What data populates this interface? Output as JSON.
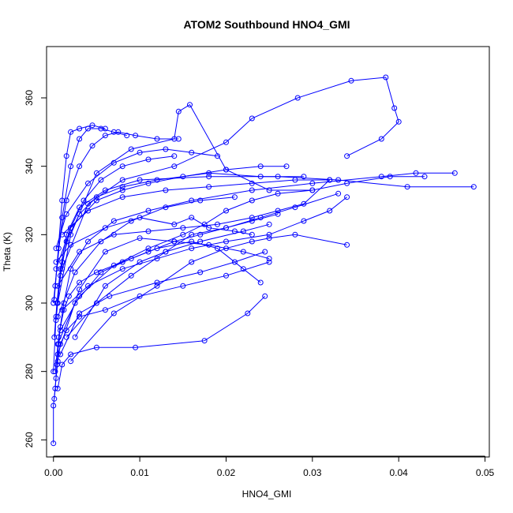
{
  "chart_data": {
    "type": "line",
    "title": "ATOM2 Southbound HNO4_GMI",
    "xlabel": "HNO4_GMI",
    "ylabel": "Theta (K)",
    "xlim": [
      -0.0008,
      0.0505
    ],
    "ylim": [
      255,
      375
    ],
    "x_ticks": [
      0.0,
      0.01,
      0.02,
      0.03,
      0.04,
      0.05
    ],
    "x_tick_labels": [
      "0.00",
      "0.01",
      "0.02",
      "0.03",
      "0.04",
      "0.05"
    ],
    "y_ticks": [
      260,
      280,
      300,
      320,
      340,
      360
    ],
    "y_tick_labels": [
      "260",
      "280",
      "300",
      "320",
      "340",
      "360"
    ],
    "grid": false,
    "colors": {
      "series": "#0000ff",
      "axis": "#000000"
    },
    "series": [
      {
        "points": [
          [
            0.0,
            259
          ],
          [
            0.0,
            270
          ],
          [
            0.0002,
            275
          ],
          [
            0.0004,
            282
          ],
          [
            0.0006,
            288
          ],
          [
            0.0008,
            293
          ],
          [
            0.0012,
            298
          ],
          [
            0.0018,
            302
          ],
          [
            0.003,
            306
          ],
          [
            0.005,
            309
          ],
          [
            0.008,
            312
          ],
          [
            0.011,
            315
          ],
          [
            0.014,
            318
          ],
          [
            0.017,
            320
          ],
          [
            0.02,
            322
          ],
          [
            0.023,
            324
          ],
          [
            0.026,
            326
          ]
        ]
      },
      {
        "points": [
          [
            0.0001,
            272
          ],
          [
            0.0003,
            278
          ],
          [
            0.0005,
            283
          ],
          [
            0.0008,
            288
          ],
          [
            0.0015,
            292
          ],
          [
            0.003,
            296
          ],
          [
            0.006,
            298
          ],
          [
            0.01,
            302
          ],
          [
            0.015,
            305
          ],
          [
            0.02,
            308
          ],
          [
            0.025,
            312
          ]
        ]
      },
      {
        "points": [
          [
            0.0005,
            275
          ],
          [
            0.001,
            282
          ],
          [
            0.002,
            285
          ],
          [
            0.005,
            287
          ],
          [
            0.0095,
            287
          ],
          [
            0.0175,
            289
          ],
          [
            0.0225,
            297
          ],
          [
            0.0245,
            302
          ]
        ]
      },
      {
        "points": [
          [
            0.0002,
            280
          ],
          [
            0.0006,
            290
          ],
          [
            0.0012,
            300
          ],
          [
            0.002,
            310
          ],
          [
            0.004,
            318
          ],
          [
            0.007,
            324
          ],
          [
            0.011,
            327
          ],
          [
            0.016,
            330
          ],
          [
            0.023,
            333
          ],
          [
            0.03,
            335
          ],
          [
            0.038,
            337
          ],
          [
            0.042,
            338
          ],
          [
            0.0465,
            338
          ]
        ]
      },
      {
        "points": [
          [
            0.0001,
            290
          ],
          [
            0.0004,
            300
          ],
          [
            0.0008,
            310
          ],
          [
            0.0015,
            320
          ],
          [
            0.003,
            328
          ],
          [
            0.006,
            333
          ],
          [
            0.01,
            336
          ],
          [
            0.018,
            337
          ],
          [
            0.026,
            337
          ],
          [
            0.033,
            336
          ],
          [
            0.041,
            334
          ],
          [
            0.0487,
            334
          ]
        ]
      },
      {
        "points": [
          [
            0.0003,
            295
          ],
          [
            0.0008,
            308
          ],
          [
            0.0015,
            318
          ],
          [
            0.003,
            326
          ],
          [
            0.005,
            331
          ],
          [
            0.008,
            334
          ],
          [
            0.012,
            336
          ],
          [
            0.018,
            338
          ],
          [
            0.024,
            337
          ],
          [
            0.029,
            337
          ]
        ]
      },
      {
        "points": [
          [
            0.0,
            300
          ],
          [
            0.0006,
            316
          ],
          [
            0.0015,
            330
          ],
          [
            0.003,
            340
          ],
          [
            0.0045,
            346
          ],
          [
            0.006,
            349
          ],
          [
            0.0075,
            350
          ],
          [
            0.0095,
            349
          ],
          [
            0.012,
            348
          ],
          [
            0.0145,
            348
          ]
        ]
      },
      {
        "points": [
          [
            0.0002,
            305
          ],
          [
            0.001,
            325
          ],
          [
            0.002,
            340
          ],
          [
            0.003,
            348
          ],
          [
            0.004,
            351
          ],
          [
            0.0055,
            351
          ],
          [
            0.007,
            350
          ],
          [
            0.0085,
            349
          ]
        ]
      },
      {
        "points": [
          [
            0.0001,
            301
          ],
          [
            0.001,
            330
          ],
          [
            0.0015,
            343
          ],
          [
            0.002,
            350
          ],
          [
            0.003,
            351
          ],
          [
            0.0045,
            352
          ],
          [
            0.006,
            351
          ]
        ]
      },
      {
        "points": [
          [
            0.0005,
            300
          ],
          [
            0.002,
            320
          ],
          [
            0.005,
            338
          ],
          [
            0.009,
            345
          ],
          [
            0.014,
            348
          ],
          [
            0.0145,
            356
          ],
          [
            0.0158,
            358
          ],
          [
            0.02,
            339
          ],
          [
            0.025,
            333
          ],
          [
            0.03,
            333
          ]
        ]
      },
      {
        "points": [
          [
            0.001,
            310
          ],
          [
            0.004,
            329
          ],
          [
            0.008,
            336
          ],
          [
            0.014,
            340
          ],
          [
            0.02,
            347
          ],
          [
            0.023,
            354
          ],
          [
            0.0283,
            360
          ],
          [
            0.0345,
            365
          ],
          [
            0.0385,
            366
          ],
          [
            0.0395,
            357
          ],
          [
            0.04,
            353
          ],
          [
            0.038,
            348
          ],
          [
            0.034,
            343
          ]
        ]
      },
      {
        "points": [
          [
            0.0005,
            305
          ],
          [
            0.003,
            315
          ],
          [
            0.007,
            320
          ],
          [
            0.011,
            321
          ],
          [
            0.015,
            322
          ],
          [
            0.019,
            323
          ],
          [
            0.023,
            325
          ],
          [
            0.026,
            327
          ],
          [
            0.029,
            329
          ],
          [
            0.032,
            336
          ]
        ]
      },
      {
        "points": [
          [
            0.001,
            298
          ],
          [
            0.004,
            305
          ],
          [
            0.008,
            310
          ],
          [
            0.012,
            313
          ],
          [
            0.016,
            316
          ],
          [
            0.02,
            318
          ],
          [
            0.025,
            320
          ],
          [
            0.029,
            324
          ],
          [
            0.032,
            327
          ],
          [
            0.034,
            331
          ]
        ]
      },
      {
        "points": [
          [
            0.0015,
            290
          ],
          [
            0.005,
            300
          ],
          [
            0.009,
            308
          ],
          [
            0.013,
            315
          ],
          [
            0.016,
            320
          ],
          [
            0.02,
            322
          ],
          [
            0.024,
            325
          ],
          [
            0.028,
            328
          ],
          [
            0.033,
            332
          ]
        ]
      },
      {
        "points": [
          [
            0.002,
            283
          ],
          [
            0.007,
            297
          ],
          [
            0.012,
            305
          ],
          [
            0.016,
            312
          ],
          [
            0.02,
            316
          ],
          [
            0.023,
            318
          ],
          [
            0.025,
            319
          ],
          [
            0.028,
            320
          ],
          [
            0.034,
            317
          ]
        ]
      },
      {
        "points": [
          [
            0.0005,
            285
          ],
          [
            0.003,
            304
          ],
          [
            0.006,
            315
          ],
          [
            0.01,
            319
          ],
          [
            0.014,
            318
          ],
          [
            0.018,
            317
          ],
          [
            0.022,
            315
          ],
          [
            0.025,
            313
          ]
        ]
      },
      {
        "points": [
          [
            0.0005,
            288
          ],
          [
            0.0025,
            300
          ],
          [
            0.0055,
            309
          ],
          [
            0.009,
            313
          ],
          [
            0.012,
            316
          ],
          [
            0.016,
            318
          ],
          [
            0.019,
            316
          ],
          [
            0.022,
            310
          ],
          [
            0.024,
            306
          ]
        ]
      },
      {
        "points": [
          [
            0.0008,
            292
          ],
          [
            0.003,
            302
          ],
          [
            0.007,
            311
          ],
          [
            0.011,
            316
          ],
          [
            0.015,
            320
          ],
          [
            0.0175,
            323
          ],
          [
            0.02,
            327
          ],
          [
            0.023,
            330
          ],
          [
            0.026,
            332
          ],
          [
            0.03,
            333
          ],
          [
            0.034,
            335
          ],
          [
            0.039,
            337
          ],
          [
            0.043,
            337
          ]
        ]
      },
      {
        "points": [
          [
            0.0003,
            310
          ],
          [
            0.002,
            322
          ],
          [
            0.005,
            330
          ],
          [
            0.008,
            333
          ],
          [
            0.011,
            335
          ],
          [
            0.015,
            337
          ],
          [
            0.02,
            339
          ],
          [
            0.024,
            340
          ],
          [
            0.027,
            340
          ]
        ]
      },
      {
        "points": [
          [
            0.001,
            320
          ],
          [
            0.004,
            327
          ],
          [
            0.008,
            331
          ],
          [
            0.013,
            333
          ],
          [
            0.018,
            334
          ],
          [
            0.023,
            335
          ],
          [
            0.028,
            336
          ],
          [
            0.032,
            336
          ]
        ]
      },
      {
        "points": [
          [
            0.0003,
            312
          ],
          [
            0.002,
            317
          ],
          [
            0.006,
            322
          ],
          [
            0.01,
            325
          ],
          [
            0.014,
            323
          ],
          [
            0.016,
            325
          ],
          [
            0.018,
            322
          ],
          [
            0.021,
            321
          ],
          [
            0.023,
            320
          ]
        ]
      },
      {
        "points": [
          [
            0.0003,
            316
          ],
          [
            0.0015,
            326
          ],
          [
            0.004,
            335
          ],
          [
            0.007,
            341
          ],
          [
            0.01,
            344
          ],
          [
            0.013,
            345
          ],
          [
            0.016,
            344
          ],
          [
            0.019,
            343
          ]
        ]
      },
      {
        "points": [
          [
            0.0008,
            285
          ],
          [
            0.003,
            297
          ],
          [
            0.0065,
            302
          ],
          [
            0.012,
            306
          ],
          [
            0.017,
            309
          ],
          [
            0.021,
            312
          ],
          [
            0.0245,
            315
          ]
        ]
      },
      {
        "points": [
          [
            0.0025,
            290
          ],
          [
            0.006,
            305
          ],
          [
            0.01,
            312
          ],
          [
            0.013,
            315
          ],
          [
            0.017,
            318
          ],
          [
            0.022,
            321
          ],
          [
            0.025,
            323
          ]
        ]
      },
      {
        "points": [
          [
            0.0,
            280
          ],
          [
            0.0003,
            296
          ],
          [
            0.001,
            312
          ],
          [
            0.002,
            322
          ],
          [
            0.0035,
            330
          ],
          [
            0.0055,
            336
          ],
          [
            0.008,
            340
          ],
          [
            0.011,
            342
          ],
          [
            0.014,
            343
          ]
        ]
      },
      {
        "points": [
          [
            0.0005,
            296
          ],
          [
            0.0025,
            309
          ],
          [
            0.0055,
            318
          ],
          [
            0.009,
            324
          ],
          [
            0.013,
            328
          ],
          [
            0.017,
            330
          ],
          [
            0.021,
            331
          ]
        ]
      }
    ]
  }
}
